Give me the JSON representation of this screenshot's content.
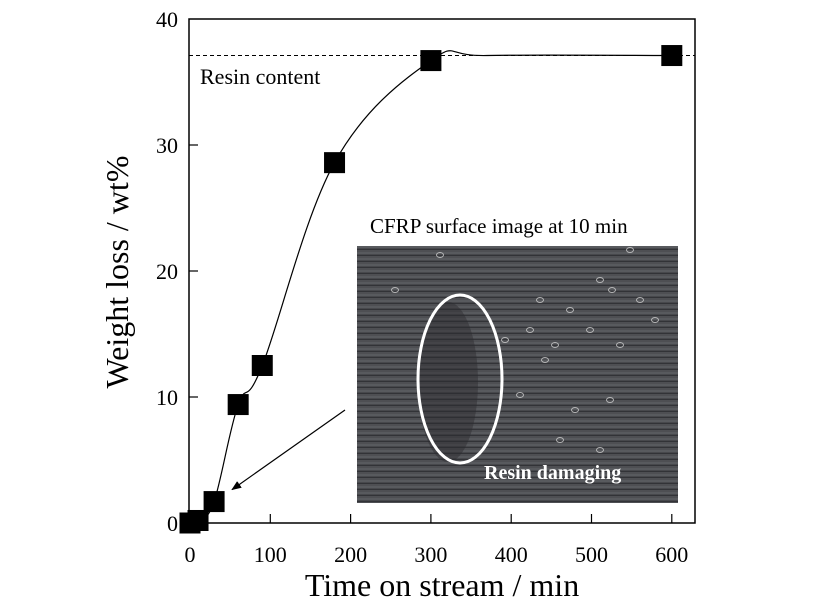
{
  "chart_data": {
    "type": "scatter",
    "title": "",
    "xlabel": "Time on stream / min",
    "ylabel": "Weight loss / wt%",
    "xlim": [
      0,
      630
    ],
    "ylim": [
      0,
      40
    ],
    "xticks": [
      0,
      100,
      200,
      300,
      400,
      500,
      600
    ],
    "yticks": [
      0,
      10,
      20,
      30,
      40
    ],
    "grid": false,
    "series": [
      {
        "name": "Weight loss",
        "marker": "square",
        "color": "#000000",
        "x": [
          0,
          10,
          30,
          60,
          90,
          180,
          300,
          600
        ],
        "y": [
          0,
          0.2,
          1.7,
          9.4,
          12.5,
          28.6,
          36.7,
          37.1
        ]
      }
    ],
    "reference_line": {
      "label": "Resin content",
      "y": 37.1,
      "style": "dashed"
    },
    "inset": {
      "title": "CFRP surface image at 10 min",
      "label": "Resin damaging",
      "points_to": {
        "x": 30,
        "y": 1.7
      }
    }
  },
  "colors": {
    "axis": "#000000",
    "inset_bg": "#4a4a4c",
    "highlight": "#ffffff"
  }
}
